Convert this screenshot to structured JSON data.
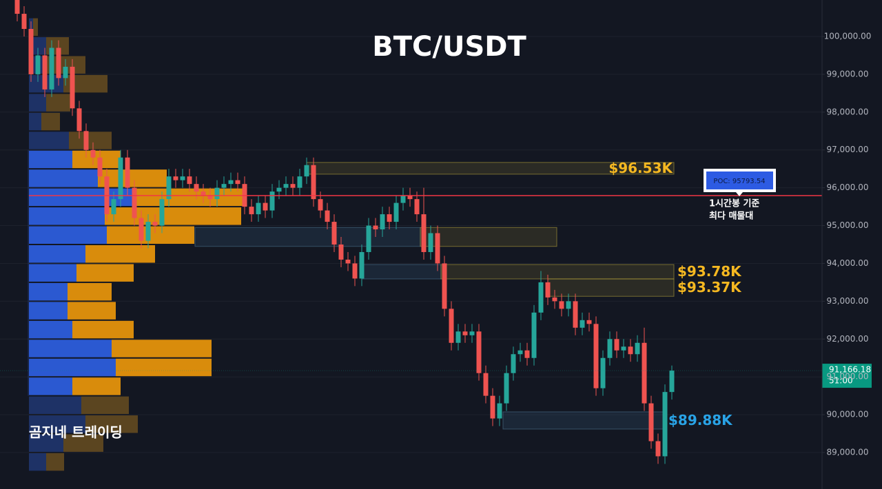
{
  "chart_data": {
    "type": "candlestick",
    "title": "BTC/USDT",
    "watermark": "곰지네 트레이딩",
    "up_color": "#26a69a",
    "down_color": "#ef5350",
    "ylim": [
      88035,
      100965
    ],
    "yticks": [
      {
        "value": 89000,
        "label": "89,000.00"
      },
      {
        "value": 90000,
        "label": "90,000.00"
      },
      {
        "value": 91000,
        "label": "91,000.00"
      },
      {
        "value": 92000,
        "label": "92,000.00"
      },
      {
        "value": 93000,
        "label": "93,000.00"
      },
      {
        "value": 94000,
        "label": "94,000.00"
      },
      {
        "value": 95000,
        "label": "95,000.00"
      },
      {
        "value": 96000,
        "label": "96,000.00"
      },
      {
        "value": 97000,
        "label": "97,000.00"
      },
      {
        "value": 98000,
        "label": "98,000.00"
      },
      {
        "value": 99000,
        "label": "99,000.00"
      },
      {
        "value": 100000,
        "label": "100,000.00"
      }
    ],
    "grid": true,
    "open": [
      101000,
      100600,
      100200,
      99000,
      99500,
      98600,
      99700,
      98900,
      99200,
      98100,
      97500,
      97000,
      96800,
      96300,
      95300,
      95700,
      96800,
      96000,
      95200,
      94600,
      95100,
      95000,
      95700,
      96300,
      96200,
      96300,
      96100,
      95900,
      95800,
      95700,
      96000,
      96100,
      96200,
      96100,
      95500,
      95300,
      95600,
      95400,
      95900,
      96000,
      96100,
      96000,
      96300,
      96600,
      95700,
      95400,
      95100,
      94500,
      94100,
      94000,
      93600,
      94300,
      95000,
      94900,
      95300,
      95100,
      95600,
      95800,
      95700,
      95300,
      94300,
      94800,
      94000,
      92800,
      91900,
      92200,
      92100,
      92200,
      91100,
      90500,
      89900,
      90300,
      91100,
      91600,
      91700,
      91500,
      92700,
      93500,
      93100,
      93000,
      92800,
      93000,
      92300,
      92500,
      92400,
      90700,
      91500,
      92000,
      91700,
      91800,
      91600,
      91900,
      90300,
      89300,
      88900,
      90600
    ],
    "high": [
      101200,
      100800,
      100400,
      99700,
      99700,
      99900,
      99900,
      99400,
      99400,
      98300,
      97700,
      97200,
      97000,
      96500,
      95900,
      97000,
      97000,
      96200,
      95400,
      95300,
      95300,
      95900,
      96500,
      96500,
      96500,
      96500,
      96300,
      96100,
      96000,
      96200,
      96300,
      96400,
      96400,
      96300,
      95700,
      95800,
      95800,
      96100,
      96200,
      96300,
      96300,
      96500,
      96800,
      96800,
      95900,
      95600,
      95300,
      94700,
      94300,
      94200,
      94500,
      95200,
      95200,
      95500,
      95500,
      95800,
      96000,
      96000,
      95900,
      96000,
      95000,
      95000,
      94200,
      93000,
      92400,
      92400,
      92400,
      92400,
      91300,
      90700,
      90500,
      91300,
      91800,
      91900,
      91900,
      92900,
      93800,
      93700,
      93300,
      93200,
      93200,
      93200,
      92700,
      92700,
      92600,
      91700,
      92200,
      92200,
      92000,
      92000,
      92100,
      92300,
      90500,
      89500,
      90800,
      91300
    ],
    "low": [
      100400,
      100000,
      98800,
      98800,
      98400,
      98400,
      98700,
      98700,
      97900,
      97300,
      96800,
      96600,
      96100,
      95100,
      95100,
      95500,
      95800,
      95000,
      94400,
      94400,
      94800,
      94800,
      95500,
      96000,
      96000,
      95900,
      95700,
      95600,
      95500,
      95500,
      95800,
      95900,
      95900,
      95300,
      95100,
      95100,
      95200,
      95200,
      95700,
      95800,
      95800,
      95800,
      96100,
      95500,
      95200,
      94900,
      94300,
      93900,
      93800,
      93400,
      93400,
      94100,
      94700,
      94700,
      94900,
      94900,
      95400,
      95500,
      95100,
      94100,
      94100,
      93800,
      92600,
      91700,
      91700,
      91900,
      91900,
      90900,
      90300,
      89700,
      89700,
      90100,
      90900,
      91400,
      91300,
      91300,
      92500,
      92900,
      92800,
      92600,
      92600,
      92100,
      92100,
      92200,
      90500,
      90500,
      91300,
      91500,
      91500,
      91400,
      91400,
      90100,
      89100,
      88700,
      88700,
      90400
    ],
    "close": [
      100600,
      100200,
      99000,
      99500,
      98600,
      99700,
      98900,
      99200,
      98100,
      97500,
      97000,
      96800,
      96300,
      95300,
      95700,
      96800,
      96000,
      95200,
      94600,
      95100,
      95000,
      95700,
      96300,
      96200,
      96300,
      96100,
      95900,
      95800,
      95700,
      96000,
      96100,
      96200,
      96100,
      95500,
      95300,
      95600,
      95400,
      95900,
      96000,
      96100,
      96000,
      96300,
      96600,
      95700,
      95400,
      95100,
      94500,
      94100,
      94000,
      93600,
      94300,
      95000,
      94900,
      95300,
      95100,
      95600,
      95800,
      95700,
      95300,
      94300,
      94800,
      94000,
      92800,
      91900,
      92200,
      92100,
      92200,
      91100,
      90500,
      89900,
      90300,
      91100,
      91600,
      91700,
      91500,
      92700,
      93500,
      93100,
      93000,
      92800,
      93000,
      92300,
      92500,
      92400,
      90700,
      91500,
      92000,
      91700,
      91800,
      91600,
      91900,
      90300,
      89300,
      88900,
      90600,
      91166.18
    ],
    "volume_profile": {
      "levels": [
        100250,
        99750,
        99250,
        98750,
        98250,
        97750,
        97250,
        96750,
        96250,
        95750,
        95250,
        94750,
        94250,
        93750,
        93250,
        92750,
        92250,
        91750,
        91250,
        90750,
        90250,
        89750,
        89250,
        88750
      ],
      "buy": [
        6,
        25,
        23,
        50,
        25,
        18,
        58,
        63,
        100,
        150,
        110,
        113,
        82,
        69,
        56,
        56,
        63,
        120,
        126,
        63,
        76,
        82,
        50,
        25
      ],
      "sell": [
        7,
        33,
        59,
        64,
        35,
        27,
        62,
        70,
        100,
        165,
        198,
        127,
        101,
        83,
        64,
        70,
        89,
        145,
        139,
        70,
        69,
        76,
        58,
        26
      ],
      "value_area": [
        90500,
        97000
      ],
      "buy_color": "#2b59d1",
      "sell_color": "#d98c0c",
      "buy_dim_color": "#1e3266",
      "sell_dim_color": "#5b4520"
    },
    "zones": [
      {
        "low": 96360,
        "high": 96670,
        "x": [
          42.5,
          95.8
        ],
        "style": "yellow",
        "label": {
          "value": 96530,
          "label": "$96.53K"
        },
        "label_position": "inside"
      },
      {
        "low": 94450,
        "high": 94950,
        "x": [
          26.3,
          59
        ],
        "style": "blue"
      },
      {
        "low": 94450,
        "high": 94950,
        "x": [
          59,
          78.8
        ],
        "style": "yellow"
      },
      {
        "low": 93590,
        "high": 93970,
        "x": [
          50.5,
          62
        ],
        "style": "blue"
      },
      {
        "low": 93590,
        "high": 93970,
        "x": [
          62,
          95.8
        ],
        "style": "yellow",
        "label": {
          "value": 93780,
          "label": "$93.78K"
        },
        "label_position": "outside"
      },
      {
        "low": 93130,
        "high": 93590,
        "x": [
          77.5,
          95.8
        ],
        "style": "yellow",
        "label": {
          "value": 93370,
          "label": "$93.37K"
        },
        "label_position": "outside"
      },
      {
        "low": 89620,
        "high": 90075,
        "x": [
          71,
          94.5
        ],
        "style": "blue",
        "label": {
          "value": 89880,
          "label": "$89.88K"
        },
        "label_position": "outside"
      }
    ],
    "poc": {
      "value": 95793.54,
      "label": "POC: 95793.54",
      "note": [
        "1시간봉 기준",
        "최다 매물대"
      ],
      "color": "#f23645"
    },
    "last_price": {
      "value": 91166.18,
      "label": "91,166.18",
      "countdown": "51:00",
      "color": "#089981"
    }
  }
}
